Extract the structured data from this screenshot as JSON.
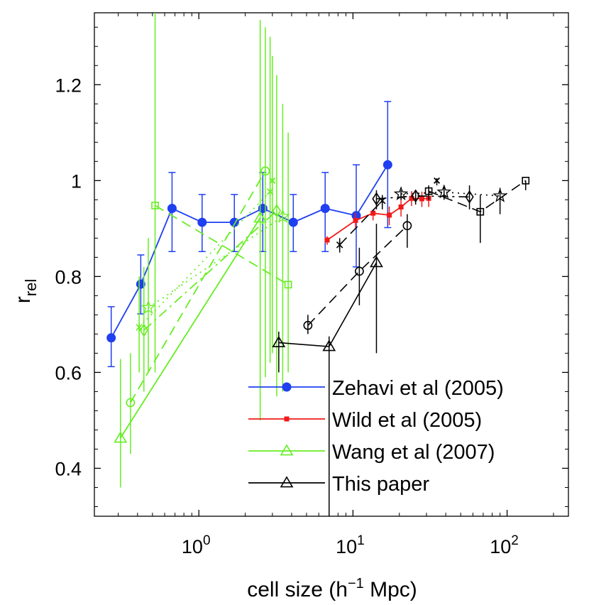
{
  "chart_data": {
    "type": "scatter",
    "xlabel": "cell size (h",
    "xlabel_sup": "−1",
    "xlabel_tail": " Mpc)",
    "ylabel": "r",
    "ylabel_sub": "rel",
    "x_scale": "log",
    "xlim": [
      0.21,
      250
    ],
    "ylim": [
      0.3,
      1.35
    ],
    "y_ticks": [
      0.4,
      0.6,
      0.8,
      1,
      1.2
    ],
    "y_tick_labels": [
      "0.4",
      "0.6",
      "0.8",
      "1",
      "1.2"
    ],
    "x_ticks": [
      {
        "x": 1,
        "base": "10",
        "exp": "0"
      },
      {
        "x": 10,
        "base": "10",
        "exp": "1"
      },
      {
        "x": 100,
        "base": "10",
        "exp": "2"
      }
    ],
    "grid": false,
    "legend_position": "bottom-right",
    "colors": {
      "blue": "#1f3ff0",
      "red": "#f01a1a",
      "green": "#66ee22",
      "black": "#000000"
    },
    "series": [
      {
        "name": "Zehavi et al (2005)",
        "color": "#1f3ff0",
        "marker": "filled-circle",
        "line": "solid",
        "x": [
          0.27,
          0.42,
          0.67,
          1.05,
          1.7,
          2.6,
          4.1,
          6.6,
          10.5,
          16.8
        ],
        "y": [
          0.672,
          0.784,
          0.942,
          0.913,
          0.913,
          0.942,
          0.913,
          0.942,
          0.927,
          1.033
        ],
        "err_low": [
          0.612,
          0.722,
          0.852,
          0.852,
          0.852,
          0.852,
          0.852,
          0.852,
          0.82,
          0.902
        ],
        "err_high": [
          0.737,
          0.845,
          1.017,
          0.971,
          0.971,
          1.017,
          0.971,
          1.017,
          1.033,
          1.165
        ]
      },
      {
        "name": "Wild et al (2005)",
        "color": "#f01a1a",
        "marker": "filled-square",
        "line": "solid",
        "x": [
          6.8,
          10.4,
          13.5,
          17.2,
          20.5,
          24,
          28,
          31
        ],
        "y": [
          0.876,
          0.917,
          0.932,
          0.928,
          0.945,
          0.963,
          0.962,
          0.963
        ],
        "err_low": [
          0.866,
          0.902,
          0.917,
          0.907,
          0.925,
          0.947,
          0.945,
          0.945
        ],
        "err_high": [
          0.884,
          0.933,
          0.94,
          0.946,
          0.966,
          0.978,
          0.977,
          0.98
        ]
      },
      {
        "name": "Wang et al (2007)",
        "color": "#66ee22",
        "marker": "open-triangle",
        "line": "solid",
        "x": [
          0.31,
          2.5
        ],
        "y": [
          0.463,
          0.922
        ],
        "err_low": [
          0.36,
          0.5
        ],
        "err_high": [
          0.628,
          1.335
        ]
      },
      {
        "name": "",
        "color": "#66ee22",
        "marker": "open-circle",
        "line": "dashed",
        "x": [
          0.36,
          2.7
        ],
        "y": [
          0.537,
          1.02
        ],
        "err_low": [
          0.43,
          0.59
        ],
        "err_high": [
          0.64,
          1.32
        ]
      },
      {
        "name": "",
        "color": "#66ee22",
        "marker": "open-diamond",
        "line": "dashdot",
        "x": [
          0.44,
          3.2
        ],
        "y": [
          0.688,
          0.937
        ],
        "err_low": [
          0.56,
          0.55
        ],
        "err_high": [
          0.82,
          1.22
        ]
      },
      {
        "name": "",
        "color": "#66ee22",
        "marker": "star",
        "line": "dotted",
        "x": [
          0.47,
          3.5
        ],
        "y": [
          0.735,
          0.925
        ],
        "err_low": [
          0.6,
          0.56
        ],
        "err_high": [
          0.88,
          1.16
        ]
      },
      {
        "name": "",
        "color": "#66ee22",
        "marker": "cross",
        "line": "dotted",
        "x": [
          0.41,
          2.9
        ],
        "y": [
          0.694,
          0.977
        ],
        "err_low": [
          0.6,
          0.62
        ],
        "err_high": [
          0.8,
          1.3
        ]
      },
      {
        "name": "",
        "color": "#66ee22",
        "marker": "x",
        "line": "dotted",
        "x": [
          3.0
        ],
        "y": [
          1.0
        ],
        "err_low": [
          0.64
        ],
        "err_high": [
          1.26
        ]
      },
      {
        "name": "",
        "color": "#66ee22",
        "marker": "open-square",
        "line": "dashed",
        "x": [
          0.52,
          3.8
        ],
        "y": [
          0.948,
          0.783
        ],
        "err_low": [
          0.6,
          0.6
        ],
        "err_high": [
          1.35,
          1.1
        ]
      },
      {
        "name": "This paper",
        "color": "#000000",
        "marker": "open-triangle",
        "line": "solid",
        "x": [
          3.3,
          7.0,
          14.2
        ],
        "y": [
          0.662,
          0.654,
          0.829
        ],
        "err_low": [
          0.6,
          0.3,
          0.64
        ],
        "err_high": [
          0.685,
          0.675,
          0.91
        ]
      },
      {
        "name": "",
        "color": "#000000",
        "marker": "open-circle",
        "line": "dashed",
        "x": [
          5.1,
          11.0,
          22.5
        ],
        "y": [
          0.698,
          0.811,
          0.906
        ],
        "err_low": [
          0.68,
          0.74,
          0.86
        ],
        "err_high": [
          0.72,
          0.86,
          0.93
        ]
      },
      {
        "name": "",
        "color": "#000000",
        "marker": "cross",
        "line": "dashed",
        "x": [
          8.2,
          15.5
        ],
        "y": [
          0.866,
          0.958
        ],
        "err_low": [
          0.85,
          0.94
        ],
        "err_high": [
          0.88,
          0.97
        ]
      },
      {
        "name": "",
        "color": "#000000",
        "marker": "open-diamond",
        "line": "dashdot",
        "x": [
          14.2,
          25.5,
          57
        ],
        "y": [
          0.962,
          0.968,
          0.966
        ],
        "err_low": [
          0.94,
          0.95,
          0.94
        ],
        "err_high": [
          0.98,
          0.98,
          0.99
        ]
      },
      {
        "name": "",
        "color": "#000000",
        "marker": "star",
        "line": "dotted",
        "x": [
          20.5,
          39,
          90
        ],
        "y": [
          0.972,
          0.976,
          0.968
        ],
        "err_low": [
          0.96,
          0.96,
          0.93
        ],
        "err_high": [
          0.98,
          0.99,
          0.985
        ]
      },
      {
        "name": "",
        "color": "#000000",
        "marker": "x",
        "line": "dotted",
        "x": [
          35
        ],
        "y": [
          1.0
        ],
        "err_low": [
          0.99
        ],
        "err_high": [
          1.005
        ]
      },
      {
        "name": "",
        "color": "#000000",
        "marker": "open-square",
        "line": "dashed",
        "x": [
          31,
          67,
          132
        ],
        "y": [
          0.978,
          0.935,
          1.0
        ],
        "err_low": [
          0.96,
          0.87,
          0.98
        ],
        "err_high": [
          0.99,
          0.97,
          1.0
        ]
      }
    ]
  }
}
